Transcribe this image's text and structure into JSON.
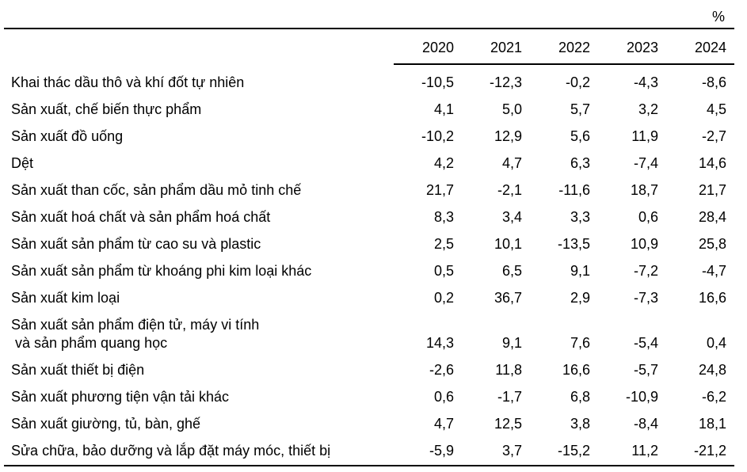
{
  "unit_label": "%",
  "chart_data": {
    "type": "table",
    "title": "",
    "unit": "%",
    "decimal_separator": ",",
    "columns": [
      "2020",
      "2021",
      "2022",
      "2023",
      "2024"
    ],
    "rows": [
      {
        "label": "Khai thác dầu thô và khí đốt tự nhiên",
        "values": [
          "-10,5",
          "-12,3",
          "-0,2",
          "-4,3",
          "-8,6"
        ]
      },
      {
        "label": "Sản xuất, chế biến thực phẩm",
        "values": [
          "4,1",
          "5,0",
          "5,7",
          "3,2",
          "4,5"
        ]
      },
      {
        "label": "Sản xuất đồ uống",
        "values": [
          "-10,2",
          "12,9",
          "5,6",
          "11,9",
          "-2,7"
        ]
      },
      {
        "label": "Dệt",
        "values": [
          "4,2",
          "4,7",
          "6,3",
          "-7,4",
          "14,6"
        ]
      },
      {
        "label": "Sản xuất than cốc, sản phẩm dầu mỏ tinh chế",
        "values": [
          "21,7",
          "-2,1",
          "-11,6",
          "18,7",
          "21,7"
        ]
      },
      {
        "label": "Sản xuất hoá chất và sản phẩm hoá chất",
        "values": [
          "8,3",
          "3,4",
          "3,3",
          "0,6",
          "28,4"
        ]
      },
      {
        "label": "Sản xuất sản phẩm từ cao su và plastic",
        "values": [
          "2,5",
          "10,1",
          "-13,5",
          "10,9",
          "25,8"
        ]
      },
      {
        "label": "Sản xuất sản phẩm từ khoáng phi kim loại khác",
        "values": [
          "0,5",
          "6,5",
          "9,1",
          "-7,2",
          "-4,7"
        ]
      },
      {
        "label": "Sản xuất kim loại",
        "values": [
          "0,2",
          "36,7",
          "2,9",
          "-7,3",
          "16,6"
        ]
      },
      {
        "label": "Sản xuất sản phẩm điện tử, máy vi tính",
        "label_line2": "và sản phẩm quang học",
        "values": [
          "14,3",
          "9,1",
          "7,6",
          "-5,4",
          "0,4"
        ]
      },
      {
        "label": "Sản xuất thiết bị điện",
        "values": [
          "-2,6",
          "11,8",
          "16,6",
          "-5,7",
          "24,8"
        ]
      },
      {
        "label": "Sản xuất phương tiện vận tải khác",
        "values": [
          "0,6",
          "-1,7",
          "6,8",
          "-10,9",
          "-6,2"
        ]
      },
      {
        "label": "Sản xuất giường, tủ, bàn, ghế",
        "values": [
          "4,7",
          "12,5",
          "3,8",
          "-8,4",
          "18,1"
        ]
      },
      {
        "label": "Sửa chữa, bảo dưỡng và lắp đặt máy móc, thiết bị",
        "values": [
          "-5,9",
          "3,7",
          "-15,2",
          "11,2",
          "-21,2"
        ]
      }
    ]
  }
}
